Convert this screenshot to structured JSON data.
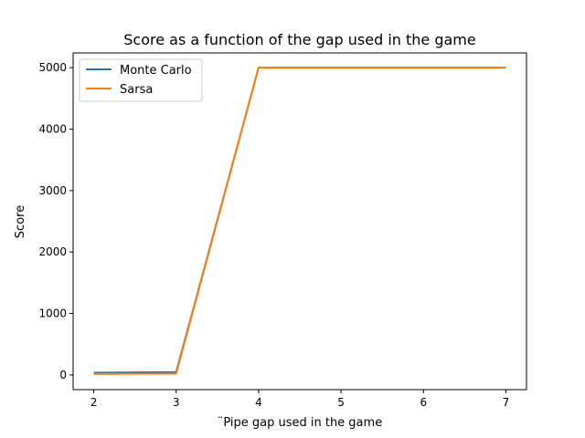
{
  "chart_data": {
    "type": "line",
    "title": "Score as a function of the gap used in the game",
    "xlabel": "¨Pipe gap used in the game",
    "ylabel": "Score",
    "x": [
      2,
      3,
      4,
      5,
      6,
      7
    ],
    "xticks": [
      2,
      3,
      4,
      5,
      6,
      7
    ],
    "yticks": [
      0,
      1000,
      2000,
      3000,
      4000,
      5000
    ],
    "xlim": [
      1.75,
      7.25
    ],
    "ylim": [
      -240,
      5240
    ],
    "grid": false,
    "legend_position": "top-left",
    "series": [
      {
        "name": "Monte Carlo",
        "color": "#1f77b4",
        "values": [
          35,
          45,
          5000,
          5000,
          5000,
          5000
        ]
      },
      {
        "name": "Sarsa",
        "color": "#ff7f0e",
        "values": [
          15,
          20,
          5000,
          5000,
          5000,
          5000
        ]
      }
    ]
  }
}
